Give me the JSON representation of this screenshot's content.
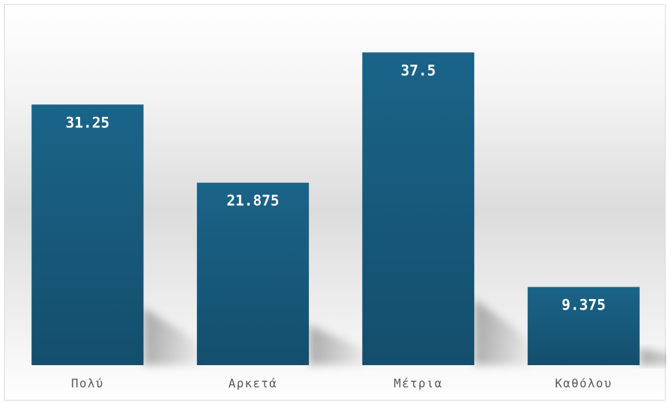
{
  "chart_data": {
    "type": "bar",
    "categories": [
      "Πολύ",
      "Αρκετά",
      "Μέτρια",
      "Καθόλου"
    ],
    "values": [
      31.25,
      21.875,
      37.5,
      9.375
    ],
    "data_labels": [
      "31.25",
      "21.875",
      "37.5",
      "9.375"
    ],
    "ylim": [
      0,
      41.7
    ],
    "grid": false,
    "legend": "none",
    "colors": {
      "bar_top": "#1a6489",
      "bar_bottom": "#144e6c",
      "label": "#ffffff",
      "category_text": "#595959"
    }
  }
}
